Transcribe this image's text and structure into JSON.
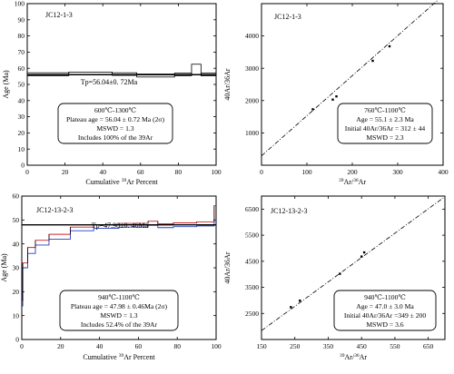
{
  "chart_data": [
    {
      "type": "line",
      "subtype": "age-spectrum",
      "title": "JC12-1-3",
      "xlabel_parts": [
        "Cumulative ",
        "39",
        "Ar Percent"
      ],
      "ylabel": "Age (Ma)",
      "xlim": [
        0,
        100
      ],
      "ylim": [
        0,
        100
      ],
      "xticks": [
        0,
        20,
        40,
        60,
        80,
        100
      ],
      "yticks": [
        0,
        10,
        20,
        30,
        40,
        50,
        60,
        70,
        80,
        90,
        100
      ],
      "plateau_label": "Tp=56.04±0. 72Ma",
      "plateau_value": 56.04,
      "steps": [
        {
          "x": [
            0,
            22
          ],
          "y": [
            55.4,
            57.2
          ]
        },
        {
          "x": [
            22,
            45
          ],
          "y": [
            56.0,
            57.6
          ]
        },
        {
          "x": [
            45,
            58
          ],
          "y": [
            55.6,
            57.2
          ]
        },
        {
          "x": [
            58,
            78
          ],
          "y": [
            54.6,
            56.4
          ]
        },
        {
          "x": [
            78,
            87
          ],
          "y": [
            55.4,
            57.0
          ]
        },
        {
          "x": [
            87,
            92
          ],
          "y": [
            56.0,
            62.5
          ]
        },
        {
          "x": [
            92,
            100
          ],
          "y": [
            55.3,
            57.1
          ]
        }
      ],
      "info_lines": [
        "600℃-1300℃",
        "Plateau age = 56.04 ± 0.72 Ma (2σ)",
        "MSWD = 1.3",
        "Includes 100% of the 39Ar"
      ]
    },
    {
      "type": "scatter",
      "subtype": "isochron",
      "title": "JC12-1-3",
      "xlabel_parts": [
        "39",
        "Ar/",
        "36",
        "Ar"
      ],
      "ylabel": "40Ar/36Ar",
      "xlim": [
        0,
        400
      ],
      "ylim": [
        0,
        5000
      ],
      "xticks": [
        0,
        100,
        200,
        300,
        400
      ],
      "yticks": [
        1000,
        2000,
        3000,
        4000
      ],
      "points": [
        {
          "x": 113,
          "y": 1730
        },
        {
          "x": 157,
          "y": 2030
        },
        {
          "x": 165,
          "y": 2130
        },
        {
          "x": 245,
          "y": 3230
        },
        {
          "x": 282,
          "y": 3680
        }
      ],
      "fit_line": {
        "x": [
          0,
          400
        ],
        "y": [
          290,
          5250
        ]
      },
      "info_lines": [
        "760℃-1100℃",
        "Age = 55.1 ± 2.3 Ma",
        "Initial 40Ar/36Ar = 312 ± 44",
        "MSWD = 2.3"
      ]
    },
    {
      "type": "line",
      "subtype": "age-spectrum",
      "title": "JC12-13-2-3",
      "xlabel_parts": [
        "Cumulative ",
        "39",
        "Ar Percent"
      ],
      "ylabel": "Age (Ma)",
      "xlim": [
        0,
        100
      ],
      "ylim": [
        0,
        60
      ],
      "xticks": [
        0,
        20,
        40,
        60,
        80,
        100
      ],
      "yticks": [
        0,
        10,
        20,
        30,
        40,
        50,
        60
      ],
      "plateau_label": "Tp=47.98±0. 46Ma",
      "plateau_value": 47.98,
      "colors": {
        "outer": "#d02020",
        "inner": "#2040c0",
        "plateau": "#000000"
      },
      "steps": [
        {
          "x": [
            0,
            0.5
          ],
          "y": [
            14,
            16
          ]
        },
        {
          "x": [
            0.5,
            3
          ],
          "y": [
            30,
            32
          ]
        },
        {
          "x": [
            3,
            7
          ],
          "y": [
            36,
            38.5
          ]
        },
        {
          "x": [
            7,
            14
          ],
          "y": [
            39.5,
            41.5
          ]
        },
        {
          "x": [
            14,
            25
          ],
          "y": [
            42,
            44
          ]
        },
        {
          "x": [
            25,
            37
          ],
          "y": [
            45.5,
            47
          ]
        },
        {
          "x": [
            37,
            50
          ],
          "y": [
            46.5,
            48
          ]
        },
        {
          "x": [
            50,
            65
          ],
          "y": [
            47,
            48.6
          ]
        },
        {
          "x": [
            65,
            70
          ],
          "y": [
            47.8,
            49.5
          ]
        },
        {
          "x": [
            70,
            78
          ],
          "y": [
            46.8,
            48.4
          ]
        },
        {
          "x": [
            78,
            90
          ],
          "y": [
            47.2,
            48.8
          ]
        },
        {
          "x": [
            90,
            99
          ],
          "y": [
            47.5,
            49.2
          ]
        },
        {
          "x": [
            99,
            100
          ],
          "y": [
            50,
            56
          ]
        }
      ],
      "info_lines": [
        "940℃-1100℃",
        "Plateau age = 47.98 ± 0.46Ma (2σ)",
        "MSWD = 1.3",
        "Includes 52.4% of the 39Ar"
      ]
    },
    {
      "type": "scatter",
      "subtype": "isochron",
      "title": "JC12-13-2-3",
      "xlabel_parts": [
        "39",
        "Ar/",
        "36",
        "Ar"
      ],
      "ylabel": "40Ar/36Ar",
      "xlim": [
        150,
        700
      ],
      "ylim": [
        1500,
        7000
      ],
      "xticks": [
        150,
        250,
        350,
        450,
        550,
        650
      ],
      "yticks": [
        2500,
        3500,
        4500,
        5500,
        6500
      ],
      "points": [
        {
          "x": 238,
          "y": 2740
        },
        {
          "x": 265,
          "y": 2990
        },
        {
          "x": 385,
          "y": 4020
        },
        {
          "x": 450,
          "y": 4680
        },
        {
          "x": 458,
          "y": 4840
        }
      ],
      "fit_line": {
        "x": [
          150,
          695
        ],
        "y": [
          1840,
          6930
        ]
      },
      "info_lines": [
        "940℃-1100℃",
        "Age = 47.0 ± 3.0 Ma",
        "Initial 40Ar/36Ar =349 ± 200",
        "MSWD = 3.6"
      ]
    }
  ]
}
